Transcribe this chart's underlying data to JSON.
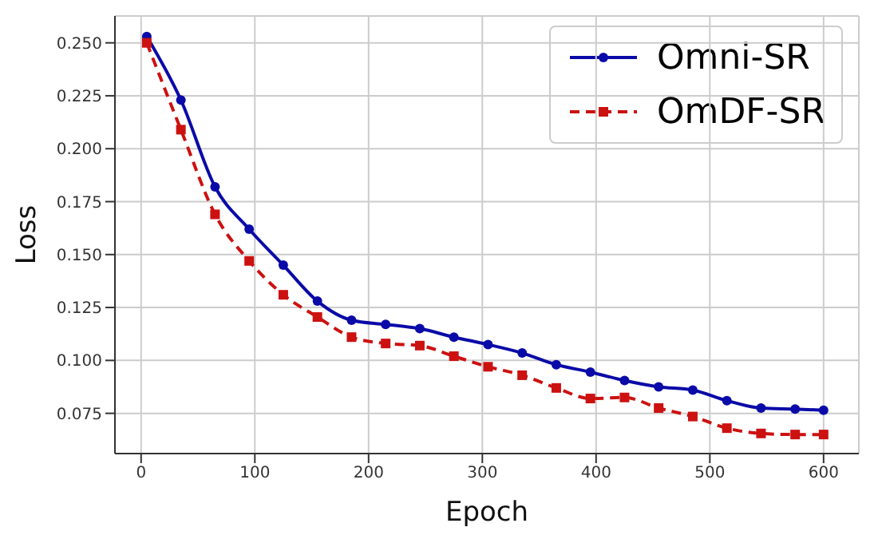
{
  "chart_data": {
    "type": "line",
    "xlabel": "Epoch",
    "ylabel": "Loss",
    "x": [
      5,
      35,
      65,
      95,
      125,
      155,
      185,
      215,
      245,
      275,
      305,
      335,
      365,
      395,
      425,
      455,
      485,
      515,
      545,
      575,
      600
    ],
    "series": [
      {
        "name": "Omni-SR",
        "color": "#0a0aa8",
        "marker": "circle",
        "line_style": "solid",
        "values": [
          0.253,
          0.223,
          0.182,
          0.162,
          0.145,
          0.128,
          0.119,
          0.117,
          0.115,
          0.111,
          0.1075,
          0.1035,
          0.098,
          0.0945,
          0.0905,
          0.0875,
          0.086,
          0.081,
          0.0775,
          0.077,
          0.0765
        ]
      },
      {
        "name": "OmDF-SR",
        "color": "#cc1111",
        "marker": "square",
        "line_style": "dashed",
        "values": [
          0.25,
          0.209,
          0.169,
          0.147,
          0.131,
          0.1205,
          0.111,
          0.108,
          0.107,
          0.102,
          0.097,
          0.093,
          0.087,
          0.082,
          0.0825,
          0.0775,
          0.0735,
          0.068,
          0.0655,
          0.065,
          0.065
        ]
      }
    ],
    "xlim": [
      -23,
      631
    ],
    "xticks": [
      0,
      100,
      200,
      300,
      400,
      500,
      600
    ],
    "ylim": [
      0.056,
      0.2627
    ],
    "yticks": [
      {
        "value": 0.075,
        "label": "0.075"
      },
      {
        "value": 0.1,
        "label": "0.100"
      },
      {
        "value": 0.125,
        "label": "0.125"
      },
      {
        "value": 0.15,
        "label": "0.150"
      },
      {
        "value": 0.175,
        "label": "0.175"
      },
      {
        "value": 0.2,
        "label": "0.200"
      },
      {
        "value": 0.225,
        "label": "0.225"
      },
      {
        "value": 0.25,
        "label": "0.250"
      }
    ],
    "grid": true,
    "legend": "top right"
  }
}
